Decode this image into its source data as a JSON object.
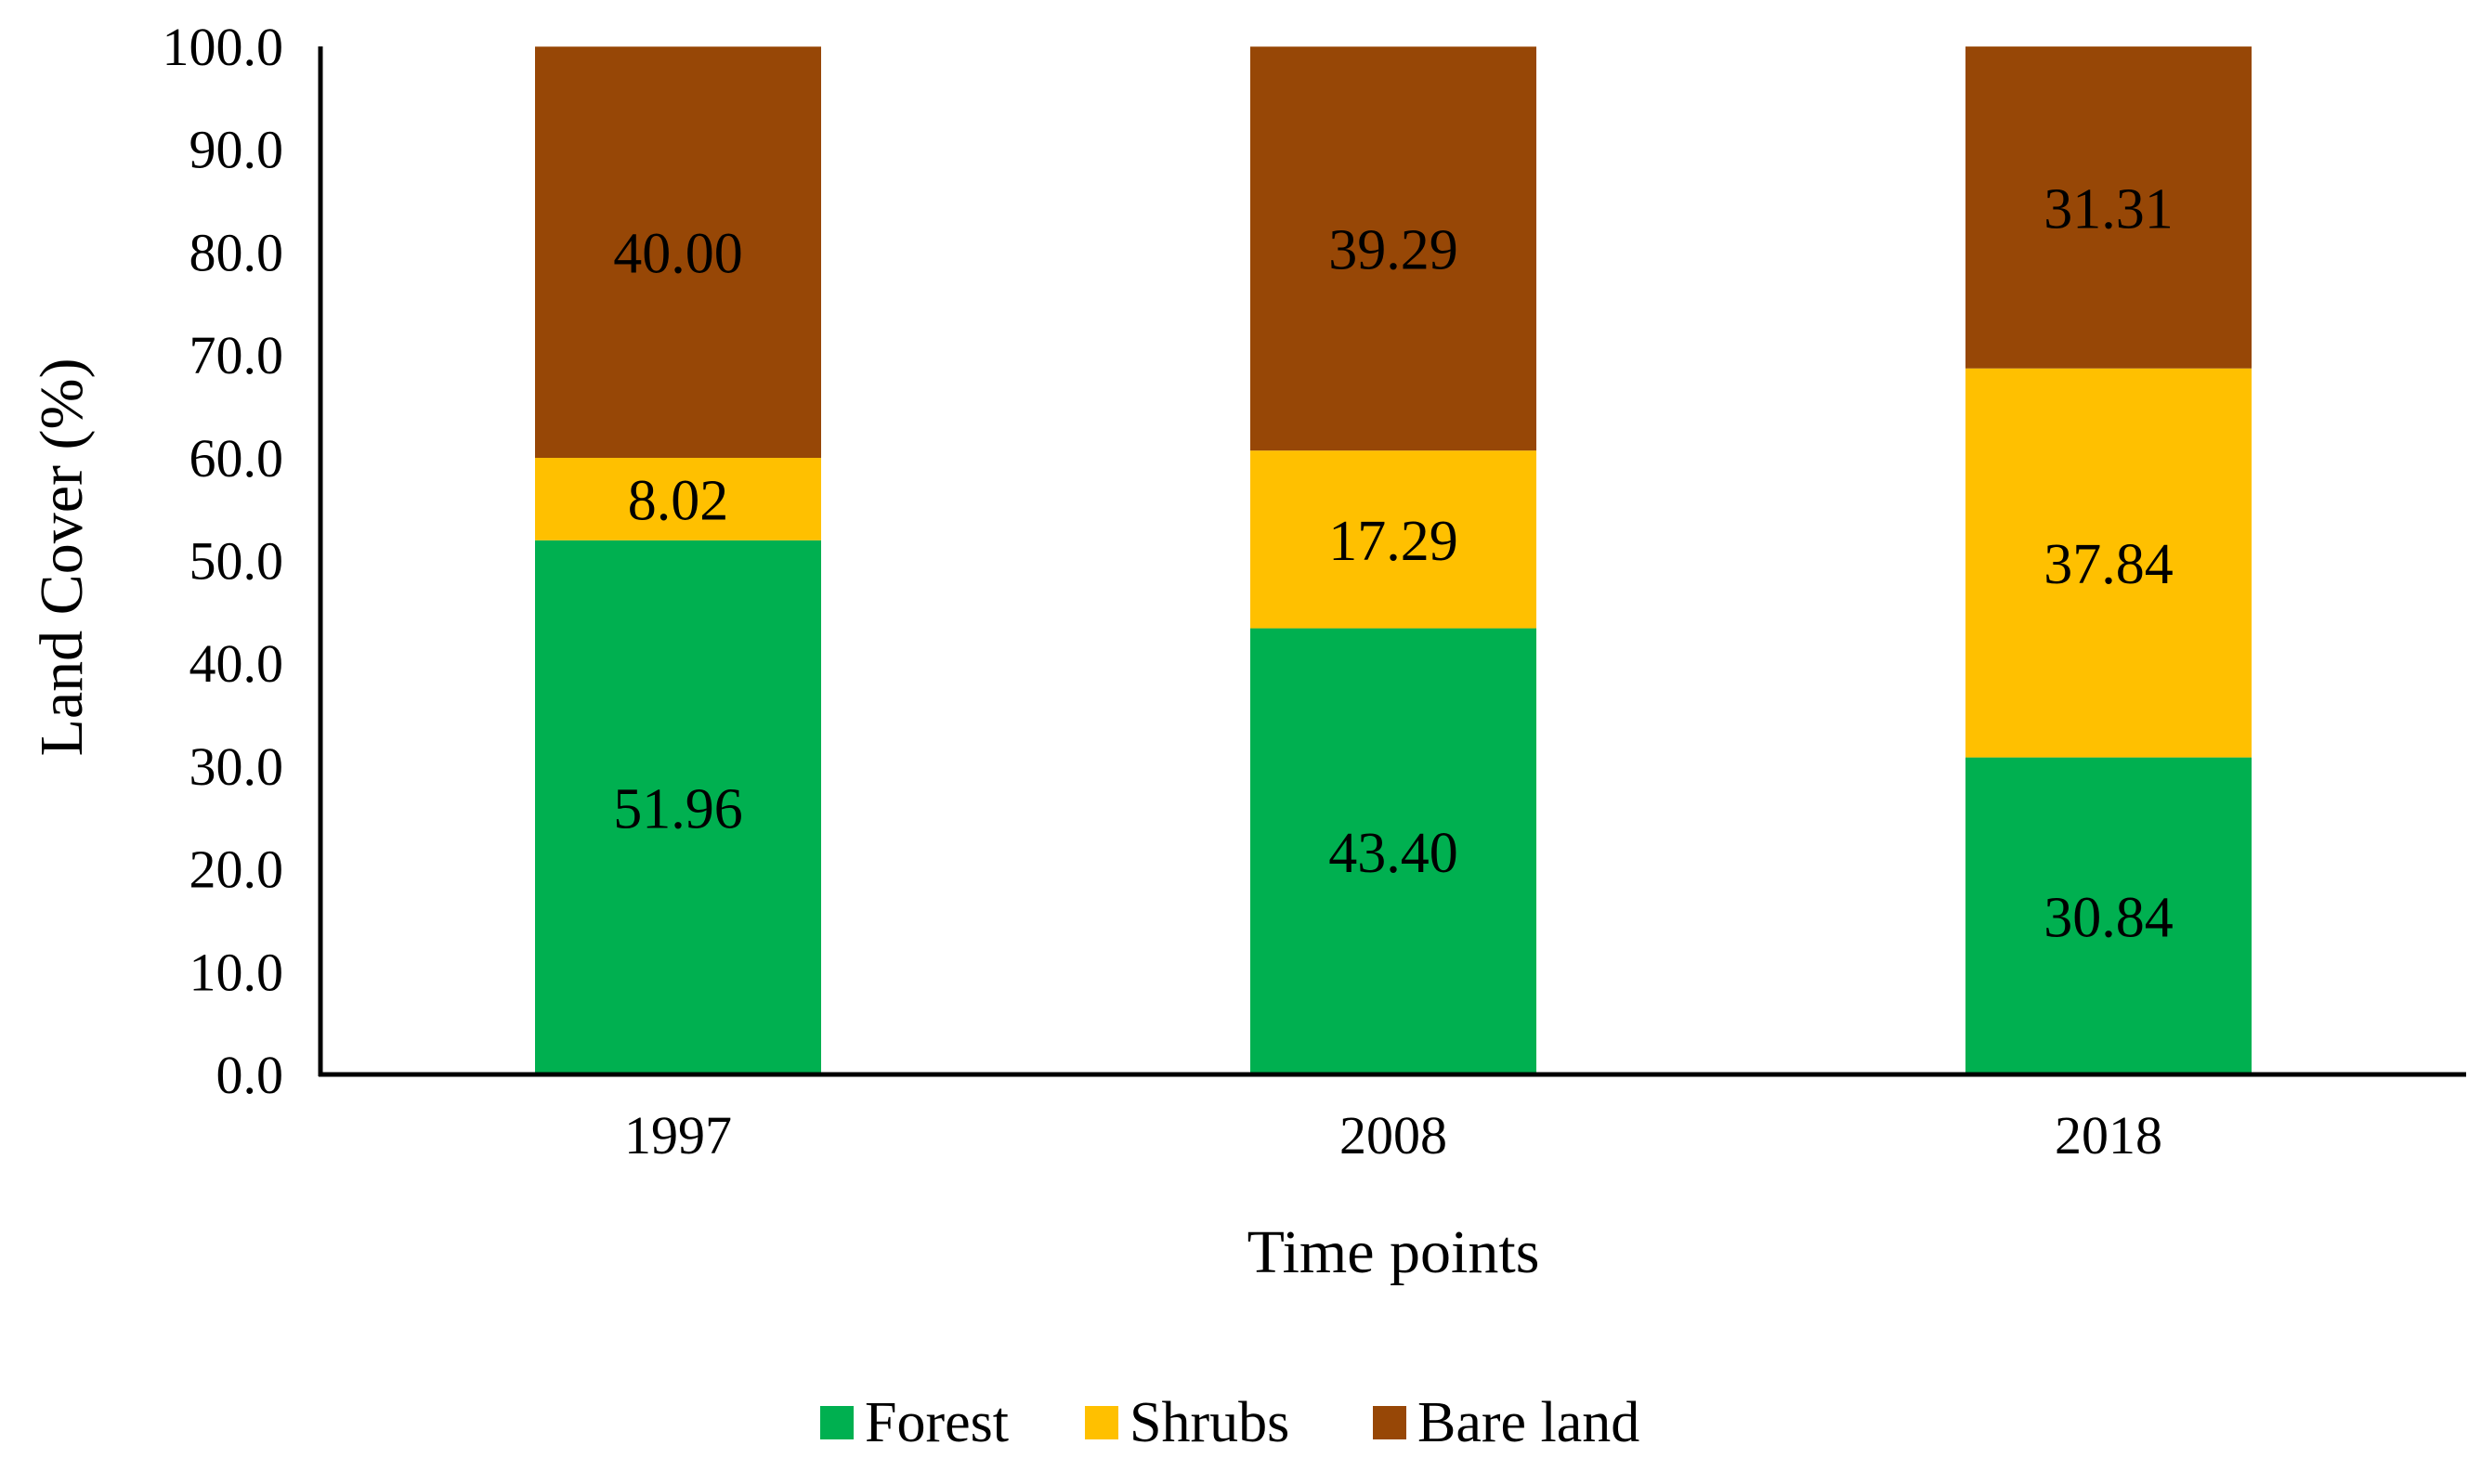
{
  "chart_data": {
    "type": "bar",
    "stacked": true,
    "title": "",
    "xlabel": "Time points",
    "ylabel": "Land Cover (%)",
    "ylim": [
      0,
      100
    ],
    "y_ticks": [
      "0.0",
      "10.0",
      "20.0",
      "30.0",
      "40.0",
      "50.0",
      "60.0",
      "70.0",
      "80.0",
      "90.0",
      "100.0"
    ],
    "categories": [
      "1997",
      "2008",
      "2018"
    ],
    "series": [
      {
        "name": "Forest",
        "color": "#00b050",
        "values": [
          51.96,
          43.4,
          30.84
        ],
        "labels": [
          "51.96",
          "43.40",
          "30.84"
        ]
      },
      {
        "name": "Shrubs",
        "color": "#ffc000",
        "values": [
          8.02,
          17.29,
          37.84
        ],
        "labels": [
          "8.02",
          "17.29",
          "37.84"
        ]
      },
      {
        "name": "Bare land",
        "color": "#974706",
        "values": [
          40.0,
          39.29,
          31.31
        ],
        "labels": [
          "40.00",
          "39.29",
          "31.31"
        ]
      }
    ],
    "legend_position": "bottom",
    "grid": false
  }
}
